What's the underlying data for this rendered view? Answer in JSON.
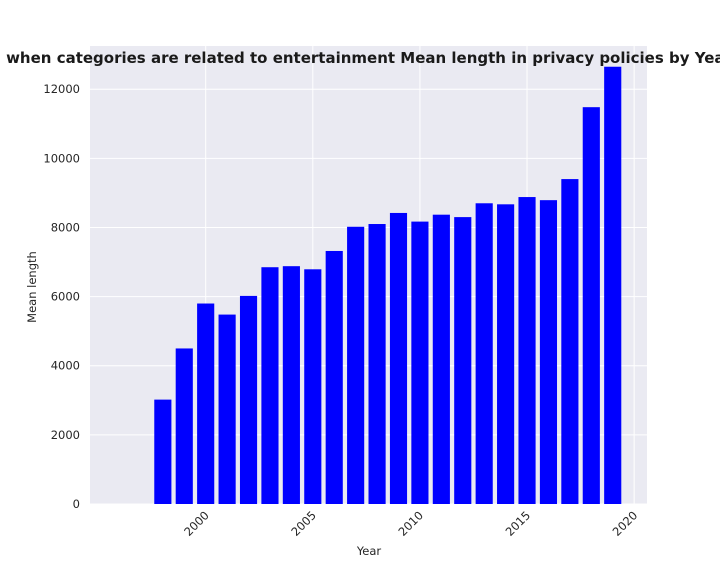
{
  "chart_data": {
    "type": "bar",
    "title": "when categories are related to entertainment Mean length in privacy policies by Year",
    "xlabel": "Year",
    "ylabel": "Mean length",
    "x": [
      1998,
      1999,
      2000,
      2001,
      2002,
      2003,
      2004,
      2005,
      2006,
      2007,
      2008,
      2009,
      2010,
      2011,
      2012,
      2013,
      2014,
      2015,
      2016,
      2017,
      2018,
      2019
    ],
    "values": [
      3020,
      4500,
      5800,
      5480,
      6020,
      6850,
      6880,
      6790,
      7320,
      8020,
      8100,
      8420,
      8170,
      8370,
      8300,
      8700,
      8670,
      8880,
      8790,
      9400,
      11480,
      12650
    ],
    "xlim": [
      1994.6,
      2020.6
    ],
    "ylim": [
      0,
      13250
    ],
    "x_ticks": [
      "2000",
      "2005",
      "2010",
      "2015",
      "2020"
    ],
    "y_ticks": [
      "0",
      "2000",
      "4000",
      "6000",
      "8000",
      "10000",
      "12000"
    ],
    "bar_color": "#0000ff",
    "background_color": "#eaeaf2",
    "grid": true
  }
}
